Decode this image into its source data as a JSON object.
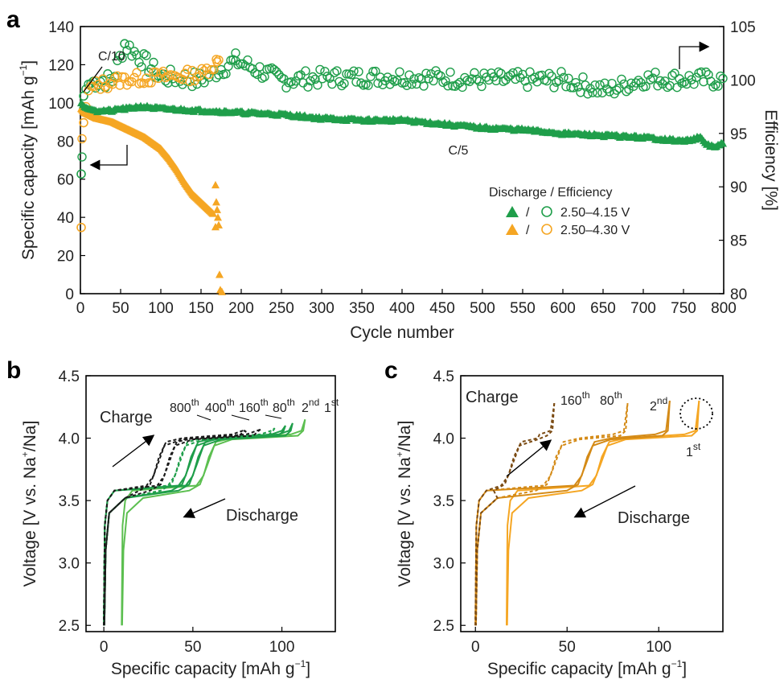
{
  "colors": {
    "green": "#1f9e4a",
    "light_green": "#5cbf50",
    "orange": "#f5a623",
    "dark_orange": "#d48a16",
    "brown": "#7a4a12",
    "black": "#1a1a1a"
  },
  "chart_data": [
    {
      "panel": "a",
      "type": "scatter",
      "xlabel": "Cycle number",
      "ylabel": "Specific capacity [mAh g",
      "ylabel_sup": "−1",
      "ylabel_end": "]",
      "y2label": "Efficiency [%]",
      "xlim": [
        0,
        800
      ],
      "ylim": [
        0,
        140
      ],
      "y2lim": [
        80,
        105
      ],
      "xticks": [
        "0",
        "50",
        "100",
        "150",
        "200",
        "250",
        "300",
        "350",
        "400",
        "450",
        "500",
        "550",
        "600",
        "650",
        "700",
        "750",
        "800"
      ],
      "yticks": [
        "0",
        "20",
        "40",
        "60",
        "80",
        "100",
        "120",
        "140"
      ],
      "y2ticks": [
        "80",
        "85",
        "90",
        "95",
        "100",
        "105"
      ],
      "legend_title": "Discharge / Efficiency",
      "legend_slash": "/",
      "legend_position": "center-right",
      "annotations": {
        "c10": "C/10",
        "c5": "C/5"
      },
      "series": [
        {
          "name": "2.50–4.15 V",
          "role": "discharge",
          "color": "green",
          "marker": "triangle",
          "x": [
            1,
            3,
            5,
            10,
            20,
            30,
            40,
            50,
            60,
            70,
            80,
            100,
            150,
            200,
            250,
            300,
            350,
            400,
            450,
            500,
            550,
            600,
            650,
            700,
            750,
            770,
            780,
            790,
            800
          ],
          "y": [
            100,
            99,
            98,
            97,
            96,
            96,
            96,
            97,
            97,
            98,
            98,
            97,
            96,
            95,
            94,
            92,
            91,
            91,
            89,
            87,
            86,
            84,
            83,
            82,
            80,
            82,
            78,
            77,
            79
          ]
        },
        {
          "name": "2.50–4.15 V",
          "role": "efficiency",
          "color": "green",
          "marker": "circle",
          "axis": "right",
          "x": [
            1,
            2,
            4,
            6,
            10,
            20,
            40,
            55,
            100,
            150,
            193,
            250,
            300,
            400,
            500,
            600,
            655,
            700,
            800
          ],
          "y": [
            91.2,
            92.8,
            98.5,
            99.0,
            99.6,
            99.9,
            100.0,
            103.4,
            100.3,
            100.0,
            101.8,
            100.0,
            100.2,
            100.3,
            100.0,
            100.0,
            99.0,
            100.1,
            100.0
          ]
        },
        {
          "name": "2.50–4.30 V",
          "role": "discharge",
          "color": "orange",
          "marker": "triangle",
          "x": [
            1,
            3,
            5,
            10,
            20,
            30,
            40,
            50,
            60,
            70,
            80,
            90,
            100,
            110,
            120,
            130,
            140,
            150,
            160,
            165,
            168,
            170,
            172,
            174,
            176
          ],
          "y": [
            97,
            96,
            95,
            94,
            92,
            91,
            90,
            88,
            86,
            84,
            82,
            79,
            76,
            71,
            65,
            58,
            52,
            48,
            44,
            42,
            57,
            48,
            40,
            10,
            1
          ]
        },
        {
          "name": "2.50–4.30 V",
          "role": "efficiency",
          "color": "orange",
          "marker": "circle",
          "axis": "right",
          "x": [
            1,
            2,
            4,
            10,
            20,
            50,
            100,
            150,
            170
          ],
          "y": [
            86.2,
            94.5,
            96.0,
            99.0,
            99.5,
            100.0,
            100.3,
            100.5,
            101.7
          ]
        }
      ]
    },
    {
      "panel": "b",
      "type": "line",
      "xlabel": "Specific capacity [mAh g",
      "xlabel_sup": "−1",
      "xlabel_end": "]",
      "ylabel": "Voltage [V vs. Na",
      "ylabel_sup": "+",
      "ylabel_end": "/Na]",
      "xlim": [
        -10,
        130
      ],
      "ylim": [
        2.45,
        4.5
      ],
      "xticks": [
        "0",
        "50",
        "100"
      ],
      "yticks": [
        "2.5",
        "3.0",
        "3.5",
        "4.0",
        "4.5"
      ],
      "charge_label": "Charge",
      "discharge_label": "Discharge",
      "cycle_labels": [
        {
          "base": "800",
          "sup": "th"
        },
        {
          "base": "400",
          "sup": "th"
        },
        {
          "base": "160",
          "sup": "th"
        },
        {
          "base": "80",
          "sup": "th"
        },
        {
          "base": "2",
          "sup": "nd"
        },
        {
          "base": "1",
          "sup": "st"
        }
      ],
      "series": [
        {
          "name": "1st",
          "color": "light_green",
          "dash": false,
          "q_max": 113,
          "plateau_q": 58,
          "v_top": 4.15,
          "start_q": 10
        },
        {
          "name": "2nd",
          "color": "green",
          "dash": false,
          "q_max": 106,
          "plateau_q": 52,
          "v_top": 4.12,
          "start_q": 0
        },
        {
          "name": "80th",
          "color": "green",
          "dash": false,
          "q_max": 102,
          "plateau_q": 48,
          "v_top": 4.1,
          "start_q": 0
        },
        {
          "name": "160th",
          "color": "green",
          "dash": true,
          "q_max": 96,
          "plateau_q": 42,
          "v_top": 4.08,
          "start_q": 0
        },
        {
          "name": "400th",
          "color": "black",
          "dash": true,
          "q_max": 88,
          "plateau_q": 36,
          "v_top": 4.07,
          "start_q": 0
        },
        {
          "name": "800th",
          "color": "black",
          "dash": true,
          "q_max": 80,
          "plateau_q": 30,
          "v_top": 4.05,
          "start_q": 0
        }
      ]
    },
    {
      "panel": "c",
      "type": "line",
      "xlabel": "Specific capacity [mAh g",
      "xlabel_sup": "−1",
      "xlabel_end": "]",
      "ylabel": "Voltage [V vs. Na",
      "ylabel_sup": "+",
      "ylabel_end": "/Na]",
      "xlim": [
        -8,
        135
      ],
      "ylim": [
        2.45,
        4.5
      ],
      "xticks": [
        "0",
        "50",
        "100"
      ],
      "yticks": [
        "2.5",
        "3.0",
        "3.5",
        "4.0",
        "4.5"
      ],
      "charge_label": "Charge",
      "discharge_label": "Discharge",
      "cycle_labels": [
        {
          "base": "160",
          "sup": "th"
        },
        {
          "base": "80",
          "sup": "th"
        },
        {
          "base": "2",
          "sup": "nd"
        },
        {
          "base": "1",
          "sup": "st"
        }
      ],
      "series": [
        {
          "name": "1st",
          "color": "orange",
          "dash": false,
          "q_max": 122,
          "plateau_q": 68,
          "v_top": 4.3,
          "start_q": 17
        },
        {
          "name": "2nd",
          "color": "dark_orange",
          "dash": false,
          "q_max": 106,
          "plateau_q": 60,
          "v_top": 4.3,
          "start_q": 0
        },
        {
          "name": "80th",
          "color": "dark_orange",
          "dash": true,
          "q_max": 83,
          "plateau_q": 43,
          "v_top": 4.28,
          "start_q": 0
        },
        {
          "name": "160th",
          "color": "brown",
          "dash": true,
          "q_max": 43,
          "plateau_q": 20,
          "v_top": 4.28,
          "start_q": 0
        }
      ]
    }
  ],
  "panel_letters": [
    "a",
    "b",
    "c"
  ]
}
